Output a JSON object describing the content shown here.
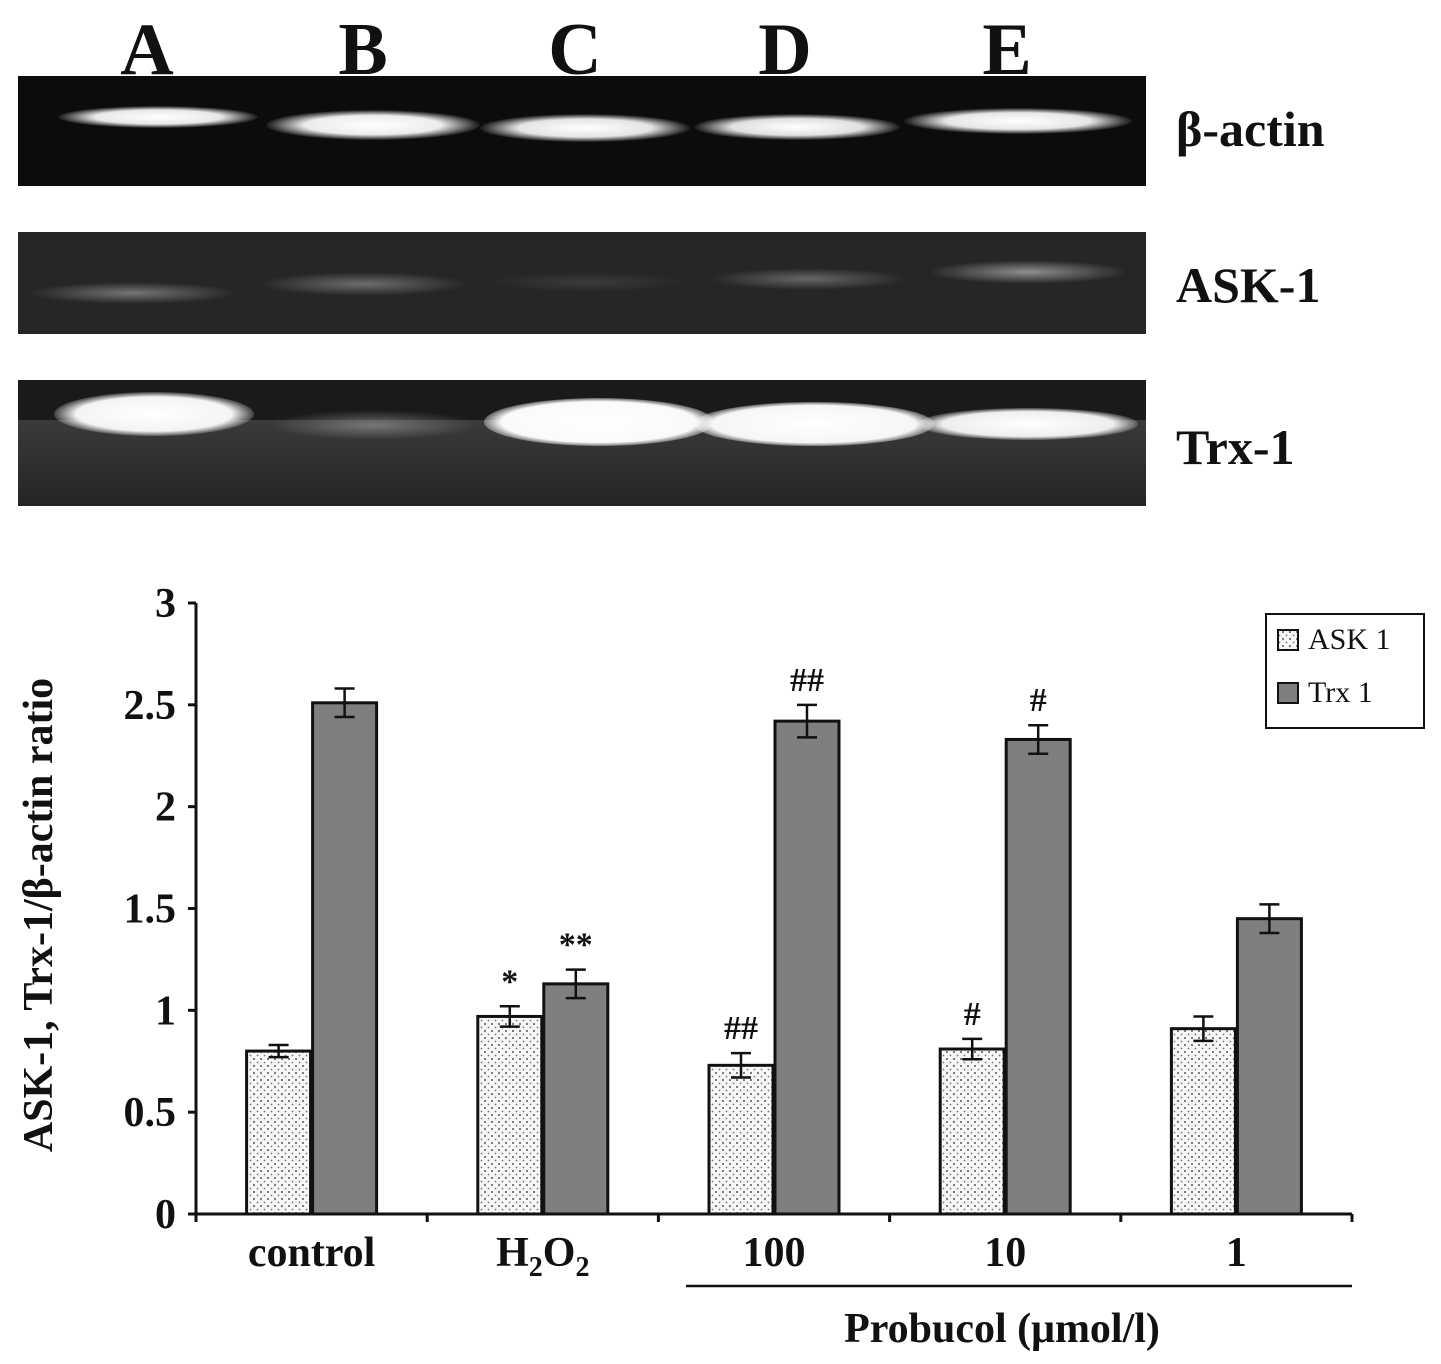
{
  "lanes": [
    "A",
    "B",
    "C",
    "D",
    "E"
  ],
  "blots": {
    "beta_actin": "β-actin",
    "ask1": "ASK-1",
    "trx1": "Trx-1"
  },
  "chart_data": {
    "type": "bar",
    "categories": [
      "control",
      "H2O2",
      "100",
      "10",
      "1"
    ],
    "series": [
      {
        "name": "ASK 1",
        "values": [
          0.8,
          0.97,
          0.73,
          0.81,
          0.91
        ],
        "errors": [
          0.03,
          0.05,
          0.06,
          0.05,
          0.06
        ],
        "annotations": [
          "",
          "*",
          "##",
          "#",
          ""
        ],
        "pattern": "dotted",
        "color": "#f4f4f4"
      },
      {
        "name": "Trx 1",
        "values": [
          2.51,
          1.13,
          2.42,
          2.33,
          1.45
        ],
        "errors": [
          0.07,
          0.07,
          0.08,
          0.07,
          0.07
        ],
        "annotations": [
          "",
          "**",
          "##",
          "#",
          ""
        ],
        "pattern": "solid",
        "color": "#7f7f7f"
      }
    ],
    "ylabel": "ASK-1, Trx-1/β-actin ratio",
    "xlabel": "Probucol (μmol/l)",
    "ylim": [
      0,
      3
    ],
    "yticks": [
      "0",
      "0.5",
      "1",
      "1.5",
      "2",
      "2.5",
      "3"
    ],
    "legend_position": "top-right",
    "grid": false
  }
}
